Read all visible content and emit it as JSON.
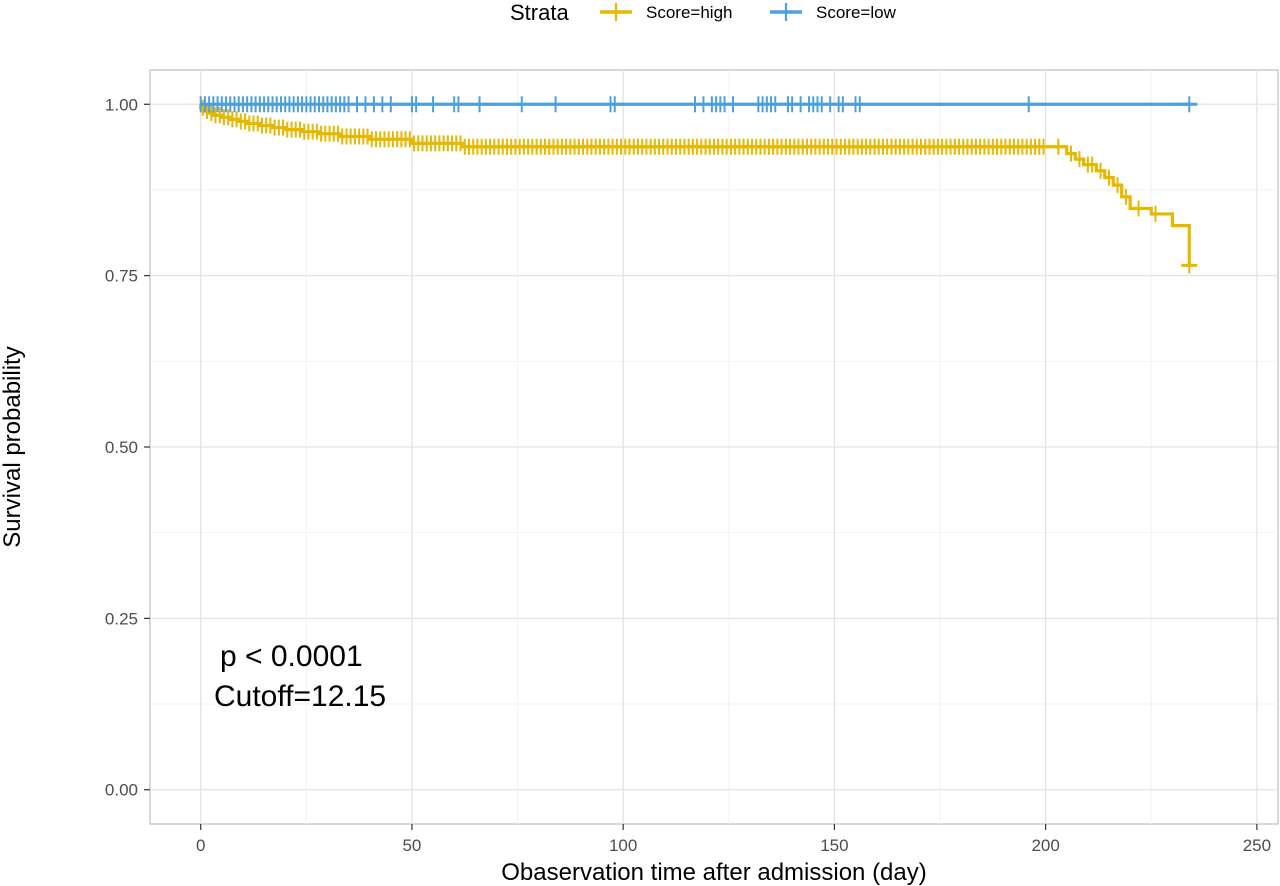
{
  "chart_data": {
    "type": "line",
    "subtype": "kaplan-meier",
    "xlabel": "Obaservation time after admission (day)",
    "ylabel": "Survival probability",
    "xlim": [
      -12,
      255
    ],
    "ylim": [
      -0.05,
      1.05
    ],
    "xticks": [
      0,
      50,
      100,
      150,
      200,
      250
    ],
    "yticks": [
      0.0,
      0.25,
      0.5,
      0.75,
      1.0
    ],
    "xtick_labels": [
      "0",
      "50",
      "100",
      "150",
      "200",
      "250"
    ],
    "ytick_labels": [
      "0.00",
      "0.25",
      "0.50",
      "0.75",
      "1.00"
    ],
    "grid": true,
    "legend": {
      "title": "Strata",
      "position": "top",
      "entries": [
        "Score=high",
        "Score=low"
      ]
    },
    "annotations": [
      "p < 0.0001",
      "Cutoff=12.15"
    ],
    "series": [
      {
        "name": "Score=high",
        "color": "#E7B800",
        "steps": [
          [
            0,
            0.995
          ],
          [
            1,
            0.99
          ],
          [
            2,
            0.987
          ],
          [
            3,
            0.984
          ],
          [
            5,
            0.981
          ],
          [
            7,
            0.978
          ],
          [
            9,
            0.975
          ],
          [
            11,
            0.972
          ],
          [
            14,
            0.969
          ],
          [
            17,
            0.966
          ],
          [
            20,
            0.963
          ],
          [
            24,
            0.96
          ],
          [
            28,
            0.957
          ],
          [
            33,
            0.953
          ],
          [
            40,
            0.949
          ],
          [
            50,
            0.943
          ],
          [
            62,
            0.938
          ],
          [
            205,
            0.928
          ],
          [
            207,
            0.92
          ],
          [
            209,
            0.912
          ],
          [
            212,
            0.903
          ],
          [
            214,
            0.893
          ],
          [
            216,
            0.882
          ],
          [
            218,
            0.865
          ],
          [
            220,
            0.848
          ],
          [
            225,
            0.84
          ],
          [
            230,
            0.823
          ],
          [
            234,
            0.765
          ]
        ],
        "end_x": 234,
        "censor_x": [
          0.5,
          1.5,
          2.5,
          3.5,
          4.5,
          5.5,
          6.5,
          7.5,
          8.5,
          9.5,
          10.5,
          11.5,
          12.5,
          13.5,
          14.5,
          15.5,
          16.5,
          17.5,
          18.5,
          19.5,
          20.5,
          21.5,
          22.5,
          23.5,
          24.5,
          25.5,
          26.5,
          27.5,
          28.5,
          29.5,
          30.5,
          31.5,
          32.5,
          33.5,
          34.5,
          35.5,
          36.5,
          37.5,
          38.5,
          39.5,
          40.5,
          41.5,
          42.5,
          43.5,
          44.5,
          45.5,
          46.5,
          47.5,
          48.5,
          49.5,
          50.5,
          51.5,
          52.5,
          53.5,
          54.5,
          55.5,
          56.5,
          57.5,
          58.5,
          59.5,
          60.5,
          61.5,
          62.5,
          63.5,
          64.5,
          65.5,
          66.5,
          67.5,
          68.5,
          69.5,
          70.5,
          71.5,
          72.5,
          73.5,
          74.5,
          75.5,
          76.5,
          77.5,
          78.5,
          79.5,
          80.5,
          81.5,
          82.5,
          83.5,
          84.5,
          85.5,
          86.5,
          87.5,
          88.5,
          89.5,
          90.5,
          91.5,
          92.5,
          93.5,
          94.5,
          95.5,
          96.5,
          97.5,
          98.5,
          99.5,
          100.5,
          101.5,
          102.5,
          103.5,
          104.5,
          105.5,
          106.5,
          107.5,
          108.5,
          109.5,
          110.5,
          111.5,
          112.5,
          113.5,
          114.5,
          115.5,
          116.5,
          117.5,
          118.5,
          119.5,
          120.5,
          121.5,
          122.5,
          123.5,
          124.5,
          125.5,
          126.5,
          127.5,
          128.5,
          129.5,
          130.5,
          131.5,
          132.5,
          133.5,
          134.5,
          135.5,
          136.5,
          137.5,
          138.5,
          139.5,
          140.5,
          141.5,
          142.5,
          143.5,
          144.5,
          145.5,
          146.5,
          147.5,
          148.5,
          149.5,
          150.5,
          151.5,
          152.5,
          153.5,
          154.5,
          155.5,
          156.5,
          157.5,
          158.5,
          159.5,
          160.5,
          161.5,
          162.5,
          163.5,
          164.5,
          165.5,
          166.5,
          167.5,
          168.5,
          169.5,
          170.5,
          171.5,
          172.5,
          173.5,
          174.5,
          175.5,
          176.5,
          177.5,
          178.5,
          179.5,
          180.5,
          181.5,
          182.5,
          183.5,
          184.5,
          185.5,
          186.5,
          187.5,
          188.5,
          189.5,
          190.5,
          191.5,
          192.5,
          193.5,
          194.5,
          195.5,
          196.5,
          197.5,
          198.5,
          199.5,
          203,
          206,
          208,
          210,
          211,
          213,
          215,
          217,
          219,
          222,
          226,
          234
        ]
      },
      {
        "name": "Score=low",
        "color": "#4DA0D9",
        "steps": [
          [
            0,
            1.0
          ]
        ],
        "end_x": 234,
        "censor_x": [
          0,
          1,
          2,
          3,
          4,
          5,
          6,
          7,
          8,
          9,
          10,
          11,
          12,
          13,
          14,
          15,
          16,
          17,
          18,
          19,
          20,
          21,
          22,
          23,
          24,
          25,
          26,
          27,
          28,
          29,
          30,
          31,
          32,
          33,
          34,
          35,
          37,
          39,
          41,
          43,
          45,
          50,
          51,
          55,
          60,
          61,
          66,
          76,
          84,
          97,
          98,
          117,
          119,
          121,
          122,
          123,
          124,
          126,
          132,
          133,
          134,
          135,
          136,
          139,
          140,
          142,
          144,
          145,
          146,
          147,
          149,
          151,
          152,
          155,
          156,
          196,
          234
        ]
      }
    ]
  }
}
